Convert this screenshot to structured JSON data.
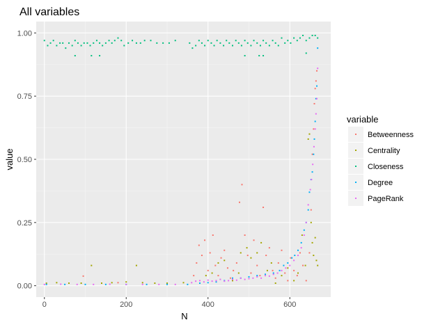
{
  "chart_data": {
    "type": "scatter",
    "title": "All variables",
    "xlabel": "N",
    "ylabel": "value",
    "xlim": [
      -20,
      700
    ],
    "ylim": [
      -0.045,
      1.045
    ],
    "x_ticks": [
      0,
      200,
      400,
      600
    ],
    "x_tick_labels": [
      "0",
      "200",
      "400",
      "600"
    ],
    "y_ticks": [
      0,
      0.25,
      0.5,
      0.75,
      1.0
    ],
    "y_tick_labels": [
      "0.00",
      "0.25",
      "0.50",
      "0.75",
      "1.00"
    ],
    "grid": true,
    "legend_title": "variable",
    "legend_position": "right",
    "series": [
      {
        "name": "Betweenness",
        "color": "#F8766D",
        "points": [
          [
            95,
            0.038
          ],
          [
            180,
            0.012
          ],
          [
            365,
            0.04
          ],
          [
            372,
            0.09
          ],
          [
            378,
            0.16
          ],
          [
            385,
            0.12
          ],
          [
            392,
            0.18
          ],
          [
            400,
            0.06
          ],
          [
            405,
            0.13
          ],
          [
            412,
            0.2
          ],
          [
            418,
            0.08
          ],
          [
            425,
            0.04
          ],
          [
            432,
            0.11
          ],
          [
            440,
            0.14
          ],
          [
            448,
            0.07
          ],
          [
            455,
            0.03
          ],
          [
            462,
            0.06
          ],
          [
            470,
            0.09
          ],
          [
            477,
            0.33
          ],
          [
            483,
            0.4
          ],
          [
            490,
            0.2
          ],
          [
            497,
            0.12
          ],
          [
            505,
            0.05
          ],
          [
            512,
            0.18
          ],
          [
            520,
            0.08
          ],
          [
            527,
            0.04
          ],
          [
            535,
            0.31
          ],
          [
            542,
            0.12
          ],
          [
            550,
            0.15
          ],
          [
            558,
            0.06
          ],
          [
            565,
            0.03
          ],
          [
            572,
            0.09
          ],
          [
            580,
            0.14
          ],
          [
            588,
            0.05
          ],
          [
            595,
            0.02
          ],
          [
            602,
            0.11
          ],
          [
            610,
            0.06
          ],
          [
            618,
            0.04
          ],
          [
            625,
            0.13
          ],
          [
            632,
            0.08
          ],
          [
            640,
            0.02
          ],
          [
            648,
            0.13
          ],
          [
            652,
            0.3
          ],
          [
            655,
            0.52
          ],
          [
            658,
            0.62
          ],
          [
            660,
            0.72
          ],
          [
            662,
            0.78
          ],
          [
            664,
            0.81
          ],
          [
            666,
            0.85
          ]
        ]
      },
      {
        "name": "Centrality",
        "color": "#A3A500",
        "points": [
          [
            5,
            0.01
          ],
          [
            30,
            0.012
          ],
          [
            60,
            0.01
          ],
          [
            90,
            0.01
          ],
          [
            115,
            0.08
          ],
          [
            140,
            0.01
          ],
          [
            165,
            0.012
          ],
          [
            200,
            0.015
          ],
          [
            225,
            0.08
          ],
          [
            240,
            0.012
          ],
          [
            270,
            0.01
          ],
          [
            300,
            0.01
          ],
          [
            340,
            0.012
          ],
          [
            380,
            0.01
          ],
          [
            395,
            0.04
          ],
          [
            410,
            0.05
          ],
          [
            425,
            0.09
          ],
          [
            440,
            0.1
          ],
          [
            460,
            0.02
          ],
          [
            475,
            0.05
          ],
          [
            480,
            0.13
          ],
          [
            495,
            0.15
          ],
          [
            505,
            0.11
          ],
          [
            520,
            0.13
          ],
          [
            530,
            0.17
          ],
          [
            545,
            0.06
          ],
          [
            555,
            0.09
          ],
          [
            565,
            0.01
          ],
          [
            580,
            0.04
          ],
          [
            595,
            0.07
          ],
          [
            610,
            0.02
          ],
          [
            620,
            0.05
          ],
          [
            630,
            0.2
          ],
          [
            638,
            0.08
          ],
          [
            645,
            0.58
          ],
          [
            648,
            0.6
          ],
          [
            652,
            0.25
          ],
          [
            655,
            0.17
          ],
          [
            658,
            0.12
          ],
          [
            662,
            0.19
          ],
          [
            665,
            0.1
          ],
          [
            668,
            0.08
          ]
        ]
      },
      {
        "name": "Closeness",
        "color": "#00BF7D",
        "points": [
          [
            0,
            0.97
          ],
          [
            8,
            0.95
          ],
          [
            15,
            0.96
          ],
          [
            22,
            0.97
          ],
          [
            30,
            0.95
          ],
          [
            38,
            0.96
          ],
          [
            45,
            0.96
          ],
          [
            52,
            0.94
          ],
          [
            60,
            0.96
          ],
          [
            68,
            0.95
          ],
          [
            75,
            0.97
          ],
          [
            82,
            0.96
          ],
          [
            90,
            0.95
          ],
          [
            97,
            0.96
          ],
          [
            105,
            0.96
          ],
          [
            112,
            0.95
          ],
          [
            120,
            0.96
          ],
          [
            128,
            0.97
          ],
          [
            135,
            0.96
          ],
          [
            142,
            0.95
          ],
          [
            150,
            0.96
          ],
          [
            158,
            0.97
          ],
          [
            165,
            0.96
          ],
          [
            172,
            0.97
          ],
          [
            180,
            0.98
          ],
          [
            188,
            0.97
          ],
          [
            195,
            0.95
          ],
          [
            205,
            0.96
          ],
          [
            215,
            0.97
          ],
          [
            225,
            0.96
          ],
          [
            235,
            0.96
          ],
          [
            245,
            0.97
          ],
          [
            260,
            0.97
          ],
          [
            275,
            0.96
          ],
          [
            290,
            0.96
          ],
          [
            305,
            0.96
          ],
          [
            320,
            0.97
          ],
          [
            355,
            0.96
          ],
          [
            362,
            0.94
          ],
          [
            370,
            0.95
          ],
          [
            378,
            0.97
          ],
          [
            385,
            0.96
          ],
          [
            392,
            0.95
          ],
          [
            400,
            0.97
          ],
          [
            408,
            0.96
          ],
          [
            415,
            0.95
          ],
          [
            422,
            0.97
          ],
          [
            430,
            0.96
          ],
          [
            438,
            0.95
          ],
          [
            445,
            0.97
          ],
          [
            452,
            0.96
          ],
          [
            460,
            0.95
          ],
          [
            468,
            0.97
          ],
          [
            475,
            0.96
          ],
          [
            482,
            0.95
          ],
          [
            490,
            0.97
          ],
          [
            497,
            0.96
          ],
          [
            505,
            0.95
          ],
          [
            512,
            0.97
          ],
          [
            520,
            0.96
          ],
          [
            528,
            0.95
          ],
          [
            535,
            0.97
          ],
          [
            542,
            0.96
          ],
          [
            550,
            0.95
          ],
          [
            558,
            0.97
          ],
          [
            565,
            0.96
          ],
          [
            572,
            0.95
          ],
          [
            580,
            0.98
          ],
          [
            588,
            0.96
          ],
          [
            595,
            0.97
          ],
          [
            602,
            0.96
          ],
          [
            610,
            0.98
          ],
          [
            618,
            0.97
          ],
          [
            625,
            0.98
          ],
          [
            632,
            0.99
          ],
          [
            640,
            0.97
          ],
          [
            648,
            0.98
          ],
          [
            655,
            0.99
          ],
          [
            662,
            0.99
          ],
          [
            668,
            0.98
          ],
          [
            75,
            0.91
          ],
          [
            115,
            0.91
          ],
          [
            135,
            0.91
          ],
          [
            490,
            0.91
          ],
          [
            525,
            0.91
          ],
          [
            535,
            0.91
          ],
          [
            640,
            0.92
          ]
        ]
      },
      {
        "name": "Degree",
        "color": "#00B0F6",
        "points": [
          [
            5,
            0.005
          ],
          [
            50,
            0.005
          ],
          [
            100,
            0.005
          ],
          [
            150,
            0.005
          ],
          [
            200,
            0.005
          ],
          [
            250,
            0.005
          ],
          [
            300,
            0.005
          ],
          [
            350,
            0.005
          ],
          [
            380,
            0.01
          ],
          [
            400,
            0.012
          ],
          [
            420,
            0.015
          ],
          [
            440,
            0.02
          ],
          [
            460,
            0.03
          ],
          [
            480,
            0.03
          ],
          [
            500,
            0.035
          ],
          [
            520,
            0.04
          ],
          [
            540,
            0.045
          ],
          [
            560,
            0.05
          ],
          [
            575,
            0.06
          ],
          [
            585,
            0.08
          ],
          [
            595,
            0.09
          ],
          [
            605,
            0.11
          ],
          [
            612,
            0.12
          ],
          [
            620,
            0.14
          ],
          [
            628,
            0.17
          ],
          [
            635,
            0.22
          ],
          [
            640,
            0.25
          ],
          [
            645,
            0.3
          ],
          [
            648,
            0.37
          ],
          [
            652,
            0.42
          ],
          [
            655,
            0.45
          ],
          [
            658,
            0.52
          ],
          [
            660,
            0.58
          ],
          [
            662,
            0.65
          ],
          [
            664,
            0.74
          ],
          [
            666,
            0.79
          ],
          [
            668,
            0.94
          ]
        ]
      },
      {
        "name": "PageRank",
        "color": "#E76BF3",
        "points": [
          [
            0,
            0.005
          ],
          [
            40,
            0.006
          ],
          [
            80,
            0.005
          ],
          [
            120,
            0.005
          ],
          [
            160,
            0.006
          ],
          [
            200,
            0.005
          ],
          [
            240,
            0.005
          ],
          [
            280,
            0.005
          ],
          [
            320,
            0.005
          ],
          [
            360,
            0.012
          ],
          [
            370,
            0.018
          ],
          [
            380,
            0.02
          ],
          [
            390,
            0.015
          ],
          [
            400,
            0.022
          ],
          [
            410,
            0.018
          ],
          [
            420,
            0.02
          ],
          [
            430,
            0.025
          ],
          [
            440,
            0.018
          ],
          [
            450,
            0.02
          ],
          [
            460,
            0.025
          ],
          [
            470,
            0.022
          ],
          [
            480,
            0.03
          ],
          [
            490,
            0.025
          ],
          [
            500,
            0.028
          ],
          [
            510,
            0.03
          ],
          [
            520,
            0.035
          ],
          [
            530,
            0.03
          ],
          [
            540,
            0.04
          ],
          [
            550,
            0.038
          ],
          [
            560,
            0.045
          ],
          [
            570,
            0.05
          ],
          [
            580,
            0.06
          ],
          [
            590,
            0.07
          ],
          [
            600,
            0.08
          ],
          [
            610,
            0.1
          ],
          [
            620,
            0.12
          ],
          [
            628,
            0.15
          ],
          [
            635,
            0.2
          ],
          [
            640,
            0.25
          ],
          [
            645,
            0.32
          ],
          [
            650,
            0.38
          ],
          [
            653,
            0.42
          ],
          [
            656,
            0.48
          ],
          [
            659,
            0.55
          ],
          [
            662,
            0.62
          ],
          [
            664,
            0.68
          ],
          [
            666,
            0.74
          ],
          [
            668,
            0.86
          ]
        ]
      }
    ]
  }
}
